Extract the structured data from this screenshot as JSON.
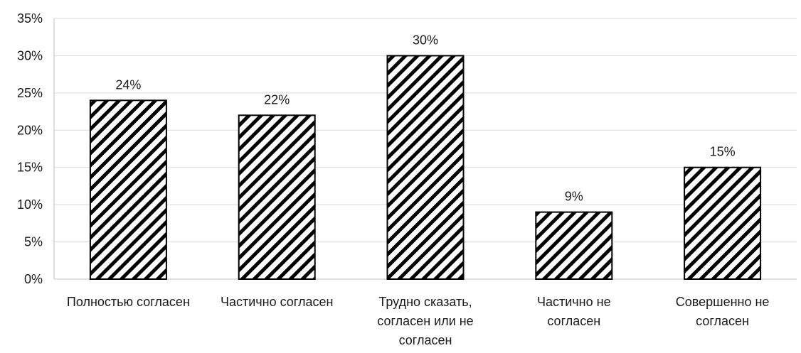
{
  "chart_data": {
    "type": "bar",
    "title": "",
    "xlabel": "",
    "ylabel": "",
    "categories": [
      "Полностью согласен",
      "Частично согласен",
      "Трудно сказать, согласен или не согласен",
      "Частично не согласен",
      "Совершенно не согласен"
    ],
    "category_lines": [
      [
        "Полностью согласен"
      ],
      [
        "Частично согласен"
      ],
      [
        "Трудно сказать,",
        "согласен или не",
        "согласен"
      ],
      [
        "Частично не",
        "согласен"
      ],
      [
        "Совершенно не",
        "согласен"
      ]
    ],
    "values": [
      24,
      22,
      30,
      9,
      15
    ],
    "data_labels": [
      "24%",
      "22%",
      "30%",
      "9%",
      "15%"
    ],
    "ylim": [
      0,
      35
    ],
    "yticks": [
      0,
      5,
      10,
      15,
      20,
      25,
      30,
      35
    ],
    "ytick_labels": [
      "0%",
      "5%",
      "10%",
      "15%",
      "20%",
      "25%",
      "30%",
      "35%"
    ],
    "grid": true,
    "legend": "none",
    "bar_fill": "diagonal-hatch",
    "colors": {
      "bar_stroke": "#000000",
      "hatch": "#000000",
      "bar_background": "#ffffff",
      "grid": "#d9d9d9",
      "axis": "#bfbfbf"
    }
  }
}
